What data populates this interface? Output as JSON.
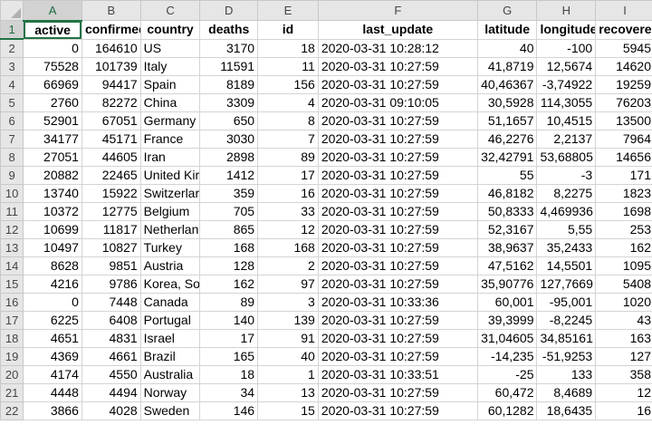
{
  "columns": [
    "A",
    "B",
    "C",
    "D",
    "E",
    "F",
    "G",
    "H",
    "I"
  ],
  "row_numbers": [
    "1",
    "2",
    "3",
    "4",
    "5",
    "6",
    "7",
    "8",
    "9",
    "10",
    "11",
    "12",
    "13",
    "14",
    "15",
    "16",
    "17",
    "18",
    "19",
    "20",
    "21",
    "22"
  ],
  "headers": [
    "active",
    "confirmed",
    "country",
    "deaths",
    "id",
    "last_update",
    "latitude",
    "longitude",
    "recovered"
  ],
  "rows": [
    [
      "0",
      "164610",
      "US",
      "3170",
      "18",
      "2020-03-31 10:28:12",
      "40",
      "-100",
      "5945"
    ],
    [
      "75528",
      "101739",
      "Italy",
      "11591",
      "11",
      "2020-03-31 10:27:59",
      "41,8719",
      "12,5674",
      "14620"
    ],
    [
      "66969",
      "94417",
      "Spain",
      "8189",
      "156",
      "2020-03-31 10:27:59",
      "40,46367",
      "-3,74922",
      "19259"
    ],
    [
      "2760",
      "82272",
      "China",
      "3309",
      "4",
      "2020-03-31 09:10:05",
      "30,5928",
      "114,3055",
      "76203"
    ],
    [
      "52901",
      "67051",
      "Germany",
      "650",
      "8",
      "2020-03-31 10:27:59",
      "51,1657",
      "10,4515",
      "13500"
    ],
    [
      "34177",
      "45171",
      "France",
      "3030",
      "7",
      "2020-03-31 10:27:59",
      "46,2276",
      "2,2137",
      "7964"
    ],
    [
      "27051",
      "44605",
      "Iran",
      "2898",
      "89",
      "2020-03-31 10:27:59",
      "32,42791",
      "53,68805",
      "14656"
    ],
    [
      "20882",
      "22465",
      "United Kir",
      "1412",
      "17",
      "2020-03-31 10:27:59",
      "55",
      "-3",
      "171"
    ],
    [
      "13740",
      "15922",
      "Switzerlar",
      "359",
      "16",
      "2020-03-31 10:27:59",
      "46,8182",
      "8,2275",
      "1823"
    ],
    [
      "10372",
      "12775",
      "Belgium",
      "705",
      "33",
      "2020-03-31 10:27:59",
      "50,8333",
      "4,469936",
      "1698"
    ],
    [
      "10699",
      "11817",
      "Netherlan",
      "865",
      "12",
      "2020-03-31 10:27:59",
      "52,3167",
      "5,55",
      "253"
    ],
    [
      "10497",
      "10827",
      "Turkey",
      "168",
      "168",
      "2020-03-31 10:27:59",
      "38,9637",
      "35,2433",
      "162"
    ],
    [
      "8628",
      "9851",
      "Austria",
      "128",
      "2",
      "2020-03-31 10:27:59",
      "47,5162",
      "14,5501",
      "1095"
    ],
    [
      "4216",
      "9786",
      "Korea, Sou",
      "162",
      "97",
      "2020-03-31 10:27:59",
      "35,90776",
      "127,7669",
      "5408"
    ],
    [
      "0",
      "7448",
      "Canada",
      "89",
      "3",
      "2020-03-31 10:33:36",
      "60,001",
      "-95,001",
      "1020"
    ],
    [
      "6225",
      "6408",
      "Portugal",
      "140",
      "139",
      "2020-03-31 10:27:59",
      "39,3999",
      "-8,2245",
      "43"
    ],
    [
      "4651",
      "4831",
      "Israel",
      "17",
      "91",
      "2020-03-31 10:27:59",
      "31,04605",
      "34,85161",
      "163"
    ],
    [
      "4369",
      "4661",
      "Brazil",
      "165",
      "40",
      "2020-03-31 10:27:59",
      "-14,235",
      "-51,9253",
      "127"
    ],
    [
      "4174",
      "4550",
      "Australia",
      "18",
      "1",
      "2020-03-31 10:33:51",
      "-25",
      "133",
      "358"
    ],
    [
      "4448",
      "4494",
      "Norway",
      "34",
      "13",
      "2020-03-31 10:27:59",
      "60,472",
      "8,4689",
      "12"
    ],
    [
      "3866",
      "4028",
      "Sweden",
      "146",
      "15",
      "2020-03-31 10:27:59",
      "60,1282",
      "18,6435",
      "16"
    ]
  ],
  "colors": {
    "accent": "#217346",
    "header_bg": "#e6e6e6",
    "gridline": "#d4d4d4"
  }
}
